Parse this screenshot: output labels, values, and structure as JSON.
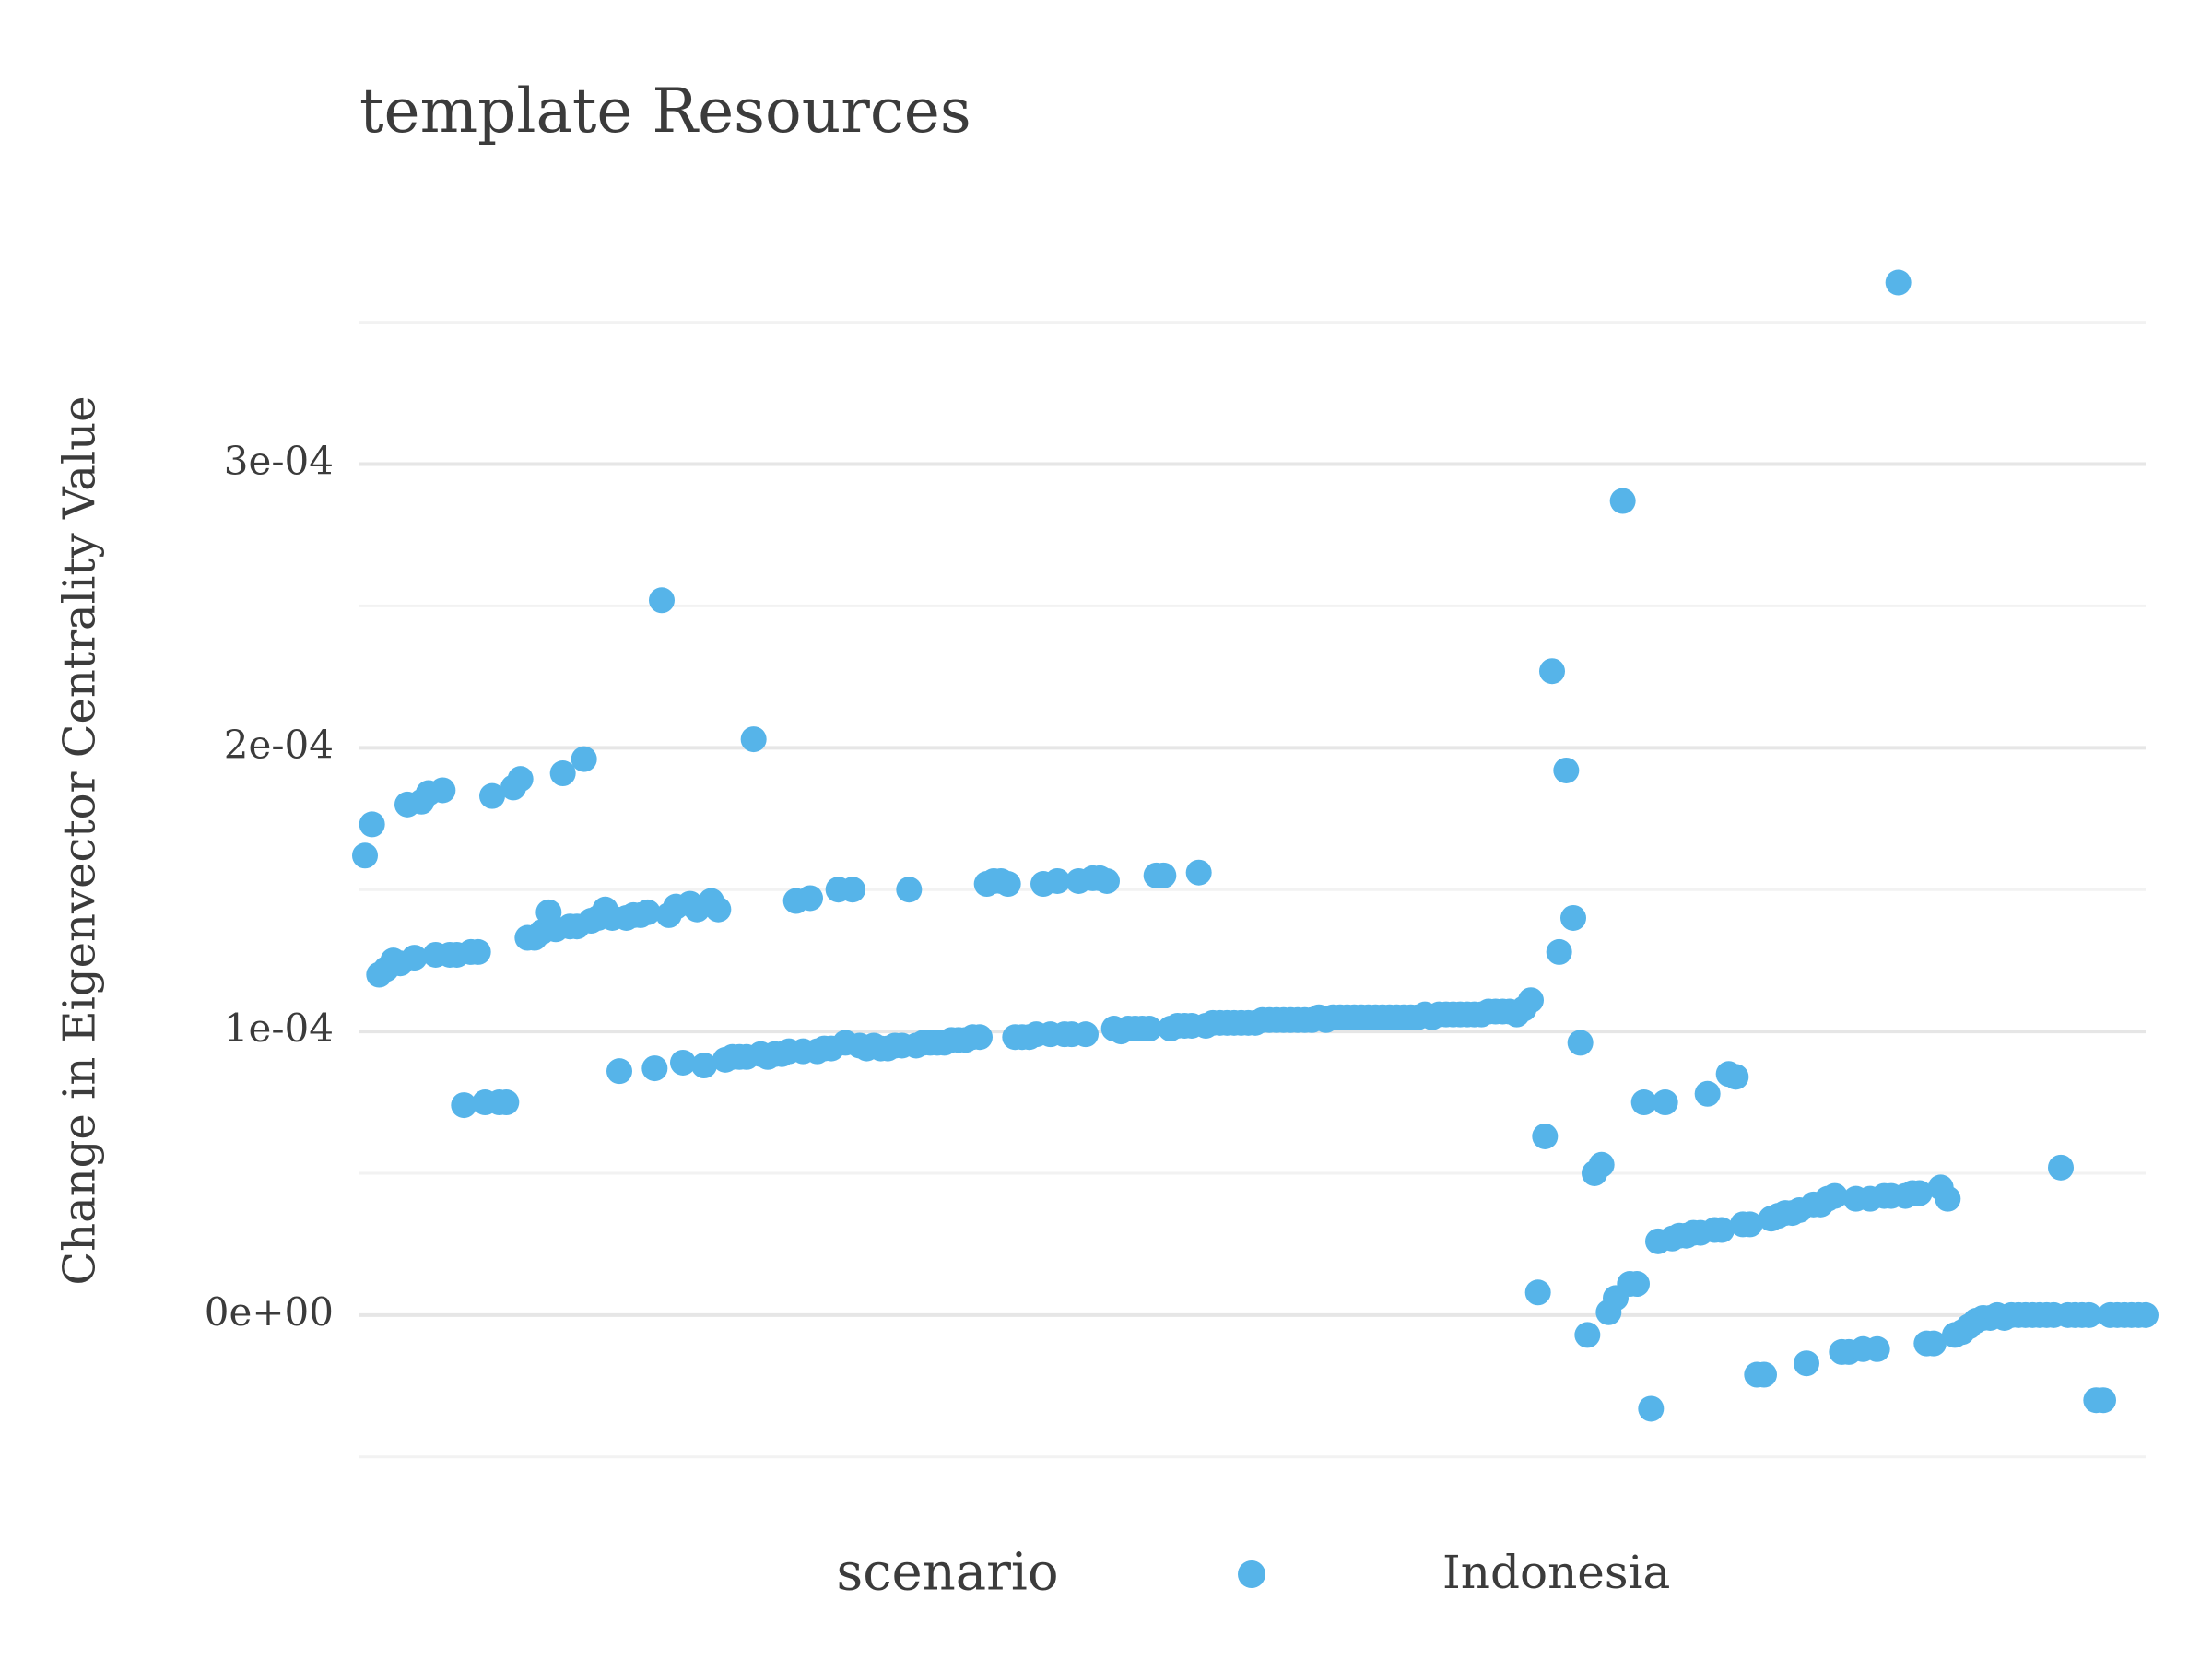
{
  "chart_data": {
    "type": "scatter",
    "title": "template Resources",
    "y_label": "Change in Eigenvector Centrality Value",
    "legend_title": "scenario",
    "legend_position": "bottom",
    "grid": true,
    "ylim": [
      -5.3e-05,
      0.000384
    ],
    "yticks": [
      {
        "value": 0,
        "label": "0e+00"
      },
      {
        "value": 0.0001,
        "label": "1e-04"
      },
      {
        "value": 0.0002,
        "label": "2e-04"
      },
      {
        "value": 0.0003,
        "label": "3e-04"
      }
    ],
    "yminor": [
      -5e-05,
      5e-05,
      0.00015,
      0.00025,
      0.00035
    ],
    "series": [
      {
        "name": "Indonesia",
        "color": "#56b4e9",
        "values": [
          0.000162,
          0.000173,
          0.00012,
          0.000122,
          0.000125,
          0.000124,
          0.00018,
          0.000126,
          0.000181,
          0.000184,
          0.000127,
          0.000185,
          0.000127,
          0.000127,
          7.4e-05,
          0.000128,
          0.000128,
          7.5e-05,
          0.000183,
          7.5e-05,
          7.5e-05,
          0.000186,
          0.000189,
          0.000133,
          0.000133,
          0.000135,
          0.000142,
          0.000136,
          0.000191,
          0.000137,
          0.000137,
          0.000196,
          0.000139,
          0.00014,
          0.000143,
          0.00014,
          8.6e-05,
          0.00014,
          0.000141,
          0.000141,
          0.000142,
          8.7e-05,
          0.000252,
          0.000141,
          0.000144,
          8.9e-05,
          0.000145,
          0.000143,
          8.8e-05,
          0.000146,
          0.000143,
          9e-05,
          9.1e-05,
          9.1e-05,
          9.1e-05,
          0.000203,
          9.2e-05,
          9.1e-05,
          9.2e-05,
          9.2e-05,
          9.3e-05,
          0.000146,
          9.3e-05,
          0.000147,
          9.3e-05,
          9.4e-05,
          9.4e-05,
          0.00015,
          9.6e-05,
          0.00015,
          9.5e-05,
          9.4e-05,
          9.5e-05,
          9.4e-05,
          9.4e-05,
          9.5e-05,
          9.5e-05,
          0.00015,
          9.5e-05,
          9.6e-05,
          9.6e-05,
          9.6e-05,
          9.6e-05,
          9.7e-05,
          9.7e-05,
          9.7e-05,
          9.8e-05,
          9.8e-05,
          0.000152,
          0.000153,
          0.000153,
          0.000152,
          9.8e-05,
          9.8e-05,
          9.8e-05,
          9.9e-05,
          0.000152,
          9.9e-05,
          0.000153,
          9.9e-05,
          9.9e-05,
          0.000153,
          9.9e-05,
          0.000154,
          0.000154,
          0.000153,
          0.000101,
          0.0001,
          0.000101,
          0.000101,
          0.000101,
          0.000101,
          0.000155,
          0.000155,
          0.000101,
          0.000102,
          0.000102,
          0.000102,
          0.000156,
          0.000102,
          0.000103,
          0.000103,
          0.000103,
          0.000103,
          0.000103,
          0.000103,
          0.000103,
          0.000104,
          0.000104,
          0.000104,
          0.000104,
          0.000104,
          0.000104,
          0.000104,
          0.000104,
          0.000105,
          0.000104,
          0.000105,
          0.000105,
          0.000105,
          0.000105,
          0.000105,
          0.000105,
          0.000105,
          0.000105,
          0.000105,
          0.000105,
          0.000105,
          0.000105,
          0.000105,
          0.000106,
          0.000105,
          0.000106,
          0.000106,
          0.000106,
          0.000106,
          0.000106,
          0.000106,
          0.000106,
          0.000107,
          0.000107,
          0.000107,
          0.000107,
          0.000106,
          0.000108,
          0.000111,
          8e-06,
          6.3e-05,
          0.000227,
          0.000128,
          0.000192,
          0.00014,
          9.6e-05,
          -7e-06,
          5e-05,
          5.3e-05,
          1e-06,
          6e-06,
          0.000287,
          1.1e-05,
          1.1e-05,
          7.5e-05,
          -3.3e-05,
          2.6e-05,
          7.5e-05,
          2.7e-05,
          2.8e-05,
          2.8e-05,
          2.9e-05,
          2.9e-05,
          7.8e-05,
          3e-05,
          3e-05,
          8.5e-05,
          8.4e-05,
          3.2e-05,
          3.2e-05,
          -2.1e-05,
          -2.1e-05,
          3.4e-05,
          3.5e-05,
          3.6e-05,
          3.6e-05,
          3.7e-05,
          -1.7e-05,
          3.9e-05,
          3.9e-05,
          4.1e-05,
          4.2e-05,
          -1.3e-05,
          -1.3e-05,
          4.1e-05,
          -1.2e-05,
          4.1e-05,
          -1.2e-05,
          4.2e-05,
          4.2e-05,
          0.000364,
          4.2e-05,
          4.3e-05,
          4.3e-05,
          -1e-05,
          -1e-05,
          4.5e-05,
          4.1e-05,
          -7e-06,
          -6e-06,
          -4e-06,
          -2e-06,
          -1e-06,
          -1e-06,
          0,
          -1e-06,
          0,
          0,
          0,
          0,
          0,
          0,
          0,
          5.2e-05,
          0,
          0,
          0,
          0,
          -3e-05,
          -3e-05,
          0,
          0,
          0,
          0,
          0,
          0
        ]
      }
    ]
  }
}
